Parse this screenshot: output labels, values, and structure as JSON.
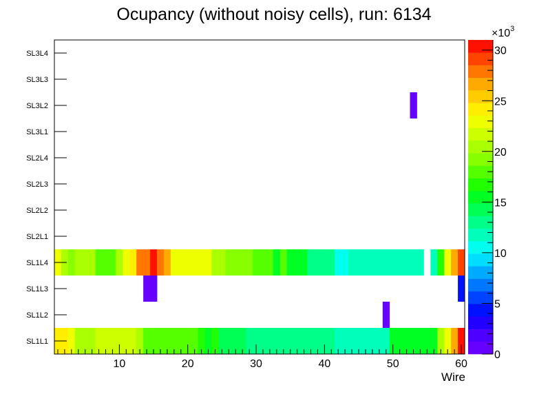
{
  "chart_data": {
    "type": "heatmap",
    "title": "Ocupancy (without noisy cells), run: 6134",
    "xlabel": "Wire",
    "xlim": [
      0.5,
      60.5
    ],
    "x_ticks": [
      10,
      20,
      30,
      40,
      50,
      60
    ],
    "y_categories": [
      "SL1L1",
      "SL1L2",
      "SL1L3",
      "SL1L4",
      "SL2L1",
      "SL2L2",
      "SL2L3",
      "SL2L4",
      "SL3L1",
      "SL3L2",
      "SL3L3",
      "SL3L4"
    ],
    "z_range": [
      0,
      31000
    ],
    "z_ticks": [
      0,
      5,
      10,
      15,
      20,
      25,
      30
    ],
    "z_multiplier": "×10",
    "z_exponent": "3",
    "palette": [
      "#6600ff",
      "#4d00ff",
      "#2200ff",
      "#0011ff",
      "#0044ff",
      "#0077ff",
      "#00aaff",
      "#00ddff",
      "#00ffee",
      "#00ffbb",
      "#00ff88",
      "#00ff55",
      "#00ff22",
      "#22ff00",
      "#55ff00",
      "#88ff00",
      "#aaff00",
      "#ccff00",
      "#eeff00",
      "#ffee00",
      "#ffcc00",
      "#ffaa00",
      "#ff7700",
      "#ff4400",
      "#ff1100"
    ],
    "rows": {
      "SL1L1": [
        24500,
        24500,
        22500,
        20500,
        20500,
        20500,
        22000,
        22000,
        22000,
        22000,
        22000,
        22000,
        21000,
        17500,
        17500,
        17500,
        17500,
        17500,
        17500,
        17500,
        17500,
        16500,
        15500,
        16500,
        14000,
        14000,
        14000,
        14000,
        12500,
        12500,
        12500,
        12500,
        12500,
        13000,
        13000,
        13000,
        13000,
        13000,
        13000,
        13000,
        13000,
        12000,
        12000,
        12000,
        12000,
        12000,
        12000,
        12000,
        12000,
        16000,
        16000,
        16000,
        16000,
        16000,
        16000,
        16000,
        20000,
        23500,
        26500,
        30500
      ],
      "SL1L2": [
        null,
        null,
        null,
        null,
        null,
        null,
        null,
        null,
        null,
        null,
        null,
        null,
        null,
        null,
        null,
        null,
        null,
        null,
        null,
        null,
        null,
        null,
        null,
        null,
        null,
        null,
        null,
        null,
        null,
        null,
        null,
        null,
        null,
        null,
        null,
        null,
        null,
        null,
        null,
        null,
        null,
        null,
        null,
        null,
        null,
        null,
        null,
        null,
        500,
        null,
        null,
        null,
        null,
        null,
        null,
        null,
        null,
        null,
        null,
        null
      ],
      "SL1L3": [
        null,
        null,
        null,
        null,
        null,
        null,
        null,
        null,
        null,
        null,
        null,
        null,
        null,
        500,
        500,
        null,
        null,
        null,
        null,
        null,
        null,
        null,
        null,
        null,
        null,
        null,
        null,
        null,
        null,
        null,
        null,
        null,
        null,
        null,
        null,
        null,
        null,
        null,
        null,
        null,
        null,
        null,
        null,
        null,
        null,
        null,
        null,
        null,
        null,
        null,
        null,
        null,
        null,
        null,
        null,
        null,
        null,
        null,
        null,
        4500
      ],
      "SL1L4": [
        22500,
        20500,
        19500,
        20500,
        20500,
        20500,
        18000,
        18000,
        18000,
        20500,
        22500,
        24500,
        28500,
        28500,
        31000,
        28500,
        26500,
        23500,
        22500,
        22500,
        22500,
        22500,
        22500,
        20000,
        20000,
        19000,
        19000,
        19000,
        19000,
        17500,
        17500,
        17500,
        16000,
        17500,
        15500,
        15500,
        15500,
        13500,
        13500,
        13500,
        13500,
        10500,
        10500,
        12000,
        12000,
        12000,
        11500,
        11500,
        11500,
        11500,
        11500,
        11500,
        11500,
        11500,
        null,
        12000,
        17000,
        22500,
        26500,
        29500
      ],
      "SL2L1": [],
      "SL2L2": [],
      "SL2L3": [],
      "SL2L4": [],
      "SL3L1": [],
      "SL3L2": [
        null,
        null,
        null,
        null,
        null,
        null,
        null,
        null,
        null,
        null,
        null,
        null,
        null,
        null,
        null,
        null,
        null,
        null,
        null,
        null,
        null,
        null,
        null,
        null,
        null,
        null,
        null,
        null,
        null,
        null,
        null,
        null,
        null,
        null,
        null,
        null,
        null,
        null,
        null,
        null,
        null,
        null,
        null,
        null,
        null,
        null,
        null,
        null,
        null,
        null,
        null,
        null,
        500,
        null,
        null,
        null,
        null,
        null,
        null,
        null
      ],
      "SL3L3": [],
      "SL3L4": []
    }
  }
}
